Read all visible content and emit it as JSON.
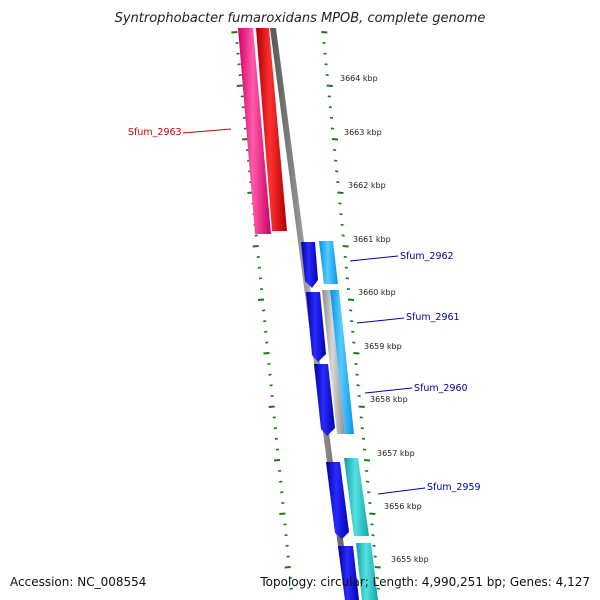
{
  "title": "Syntrophobacter fumaroxidans MPOB, complete genome",
  "footer": {
    "accession": "Accession: NC_008554",
    "summary": "Topology: circular; Length: 4,990,251 bp; Genes: 4,127"
  },
  "scale_labels": [
    "3664 kbp",
    "3663 kbp",
    "3662 kbp",
    "3661 kbp",
    "3660 kbp",
    "3659 kbp",
    "3658 kbp",
    "3657 kbp",
    "3656 kbp",
    "3655 kbp"
  ],
  "gene_labels": [
    {
      "name": "Sfum_2963",
      "color": "#cc0000"
    },
    {
      "name": "Sfum_2962",
      "color": "#0000aa"
    },
    {
      "name": "Sfum_2961",
      "color": "#0000aa"
    },
    {
      "name": "Sfum_2960",
      "color": "#0000aa"
    },
    {
      "name": "Sfum_2959",
      "color": "#0000aa"
    }
  ],
  "colors": {
    "backbone": "#777777",
    "scale_ticks": "#1a7a1a",
    "forward_gene": "#ff0000",
    "pink_gene": "#ff1f8a",
    "reverse_gene": "#0000ee",
    "reverse_light": "#22bbff",
    "teal_gene": "#22cccc",
    "grey_gene": "#b0b0b0"
  }
}
